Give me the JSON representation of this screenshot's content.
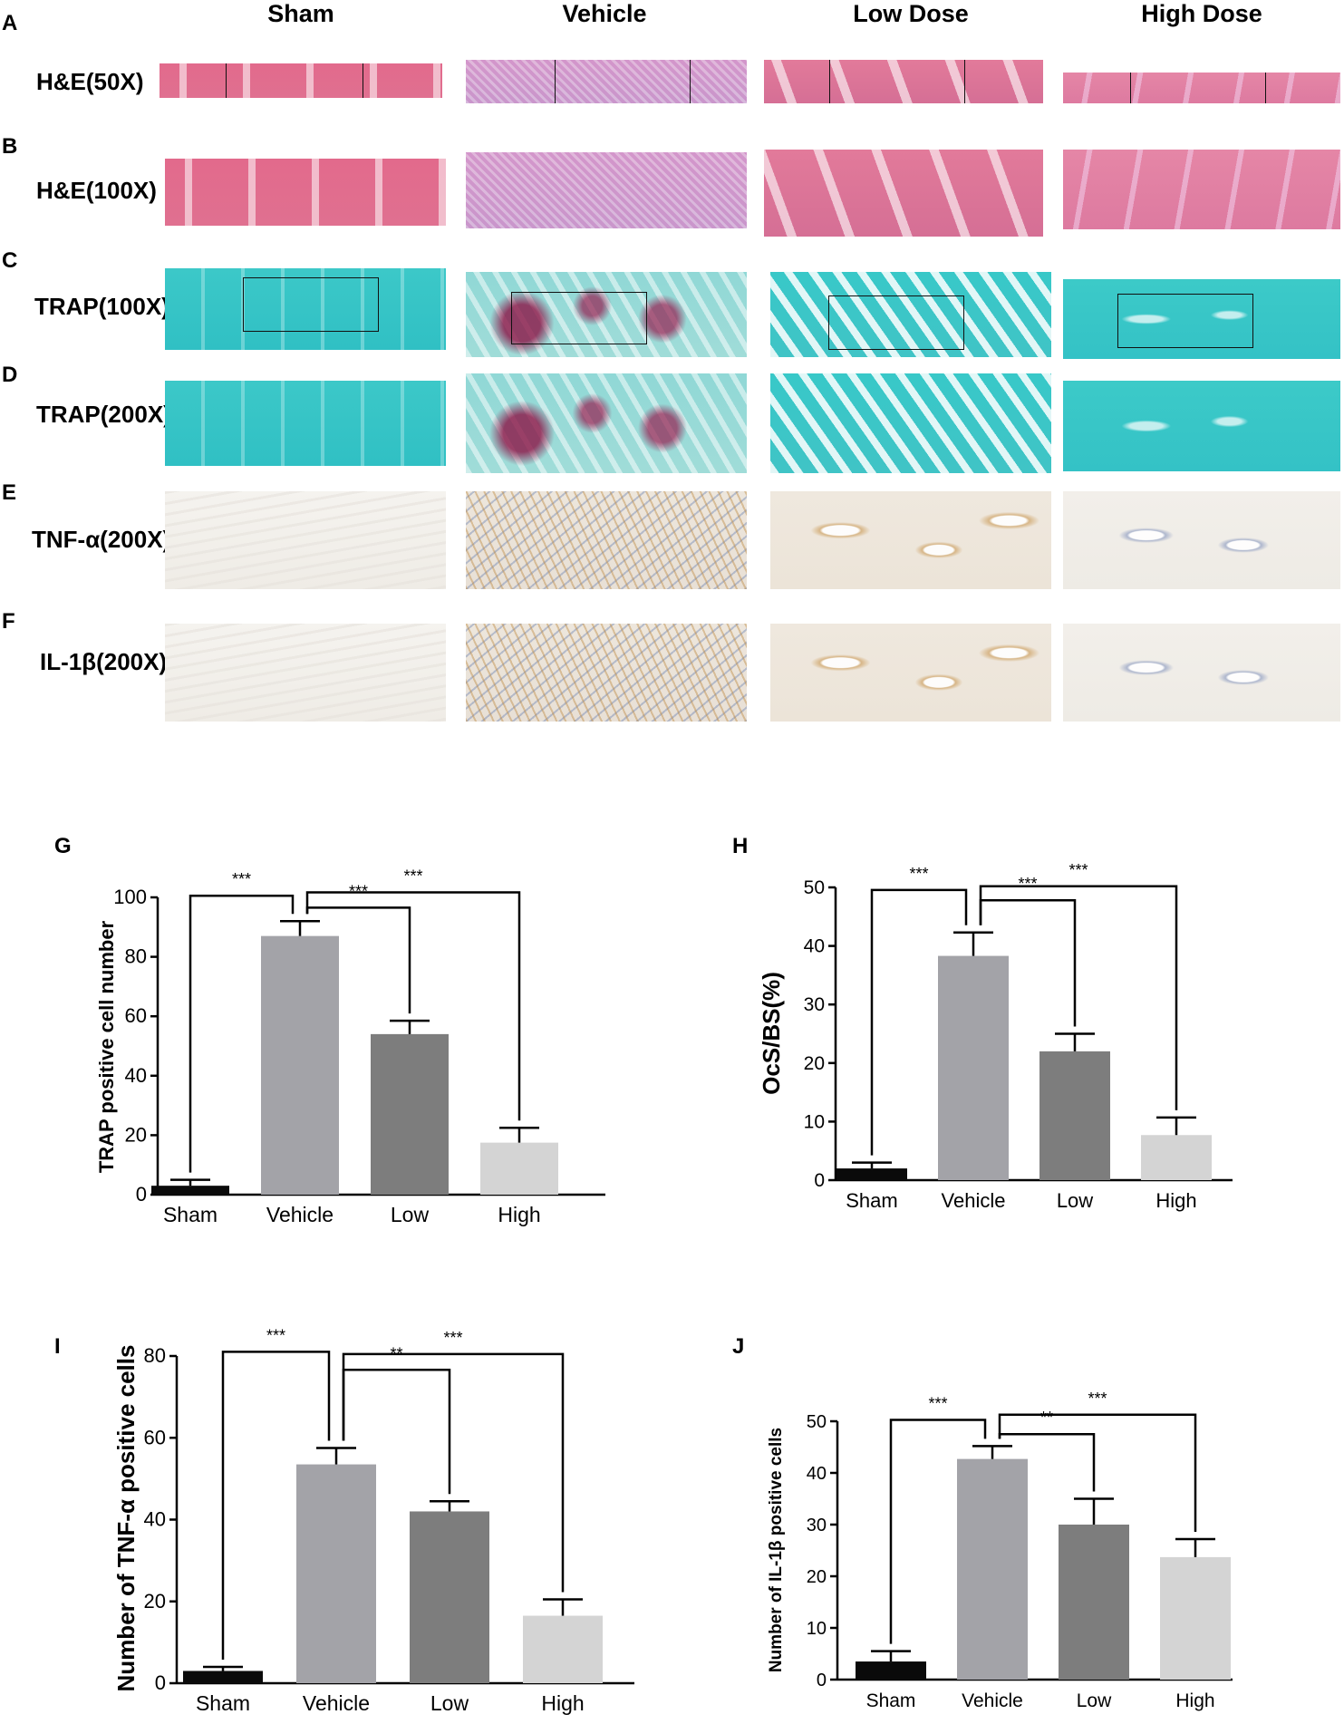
{
  "columns": [
    "Sham",
    "Vehicle",
    "Low Dose",
    "High Dose"
  ],
  "rows": [
    {
      "letter": "A",
      "label": "H&E(50X)"
    },
    {
      "letter": "B",
      "label": "H&E(100X)"
    },
    {
      "letter": "C",
      "label": "TRAP(100X)"
    },
    {
      "letter": "D",
      "label": "TRAP(200X)"
    },
    {
      "letter": "E",
      "label": "TNF-α(200X)"
    },
    {
      "letter": "F",
      "label": "IL-1β(200X)"
    }
  ],
  "chart_data": [
    {
      "panel": "G",
      "type": "bar",
      "ylabel": "TRAP positive cell number",
      "categories": [
        "Sham",
        "Vehicle",
        "Low",
        "High"
      ],
      "values": [
        3,
        87,
        54,
        17.5
      ],
      "errors": [
        2,
        5,
        4.5,
        5
      ],
      "colors": [
        "#0a0a0a",
        "#a3a3a8",
        "#7d7d7d",
        "#d4d4d4"
      ],
      "ylim": [
        0,
        100
      ],
      "yticks": [
        0,
        20,
        40,
        60,
        80,
        100
      ],
      "significance": [
        {
          "from": 0,
          "to": 1,
          "label": "***"
        },
        {
          "from": 1,
          "to": 2,
          "label": "***"
        },
        {
          "from": 1,
          "to": 3,
          "label": "***"
        }
      ]
    },
    {
      "panel": "H",
      "type": "bar",
      "ylabel": "OcS/BS(%)",
      "categories": [
        "Sham",
        "Vehicle",
        "Low",
        "High"
      ],
      "values": [
        2,
        38.3,
        22,
        7.7
      ],
      "errors": [
        1,
        4,
        3,
        3
      ],
      "colors": [
        "#0a0a0a",
        "#a3a3a8",
        "#7d7d7d",
        "#d4d4d4"
      ],
      "ylim": [
        0,
        50
      ],
      "yticks": [
        0,
        10,
        20,
        30,
        40,
        50
      ],
      "significance": [
        {
          "from": 0,
          "to": 1,
          "label": "***"
        },
        {
          "from": 1,
          "to": 2,
          "label": "***"
        },
        {
          "from": 1,
          "to": 3,
          "label": "***"
        }
      ]
    },
    {
      "panel": "I",
      "type": "bar",
      "ylabel": "Number of TNF-α positive cells",
      "categories": [
        "Sham",
        "Vehicle",
        "Low",
        "High"
      ],
      "values": [
        3,
        53.5,
        42,
        16.5
      ],
      "errors": [
        1,
        4,
        2.5,
        4
      ],
      "colors": [
        "#0a0a0a",
        "#a3a3a8",
        "#7d7d7d",
        "#d4d4d4"
      ],
      "ylim": [
        0,
        80
      ],
      "yticks": [
        0,
        20,
        40,
        60,
        80
      ],
      "significance": [
        {
          "from": 0,
          "to": 1,
          "label": "***"
        },
        {
          "from": 1,
          "to": 2,
          "label": "**"
        },
        {
          "from": 1,
          "to": 3,
          "label": "***"
        }
      ]
    },
    {
      "panel": "J",
      "type": "bar",
      "ylabel": "Number of IL-1β positive cells",
      "categories": [
        "Sham",
        "Vehicle",
        "Low",
        "High"
      ],
      "values": [
        3.5,
        42.7,
        30,
        23.7
      ],
      "errors": [
        2,
        2.5,
        5,
        3.5
      ],
      "colors": [
        "#0a0a0a",
        "#a3a3a8",
        "#7d7d7d",
        "#d4d4d4"
      ],
      "ylim": [
        0,
        50
      ],
      "yticks": [
        0,
        10,
        20,
        30,
        40,
        50
      ],
      "significance": [
        {
          "from": 0,
          "to": 1,
          "label": "***"
        },
        {
          "from": 1,
          "to": 2,
          "label": "**"
        },
        {
          "from": 1,
          "to": 3,
          "label": "***"
        }
      ]
    }
  ]
}
